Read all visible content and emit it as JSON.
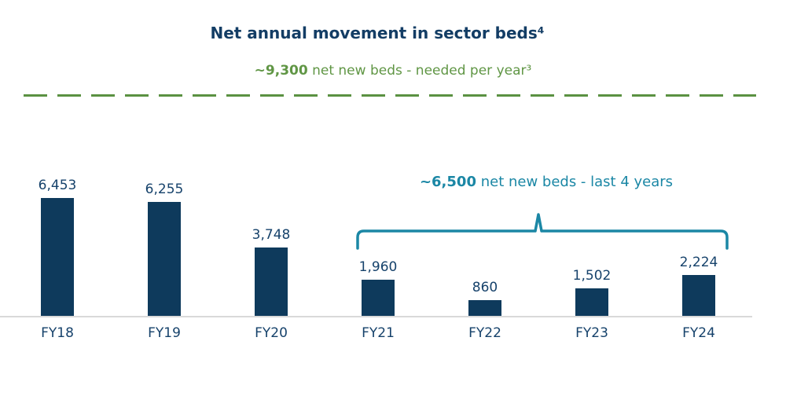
{
  "header": {
    "title": "Net annual movement in sector beds⁴",
    "subtitle_bold": "~9,300",
    "subtitle_rest": " net new beds - needed per year³"
  },
  "annotation": {
    "bracket_bold": "~6,500",
    "bracket_rest": " net new beds - last 4 years"
  },
  "colors": {
    "navy_title": "#133D65",
    "navy_bar": "#0E3A5C",
    "navy_label": "#16426B",
    "green": "#5B9142",
    "teal": "#1B87A5",
    "baseline_gray": "#D9D9D9"
  },
  "chart_data": {
    "type": "bar",
    "title": "Net annual movement in sector beds⁴",
    "categories": [
      "FY18",
      "FY19",
      "FY20",
      "FY21",
      "FY22",
      "FY23",
      "FY24"
    ],
    "values": [
      6453,
      6255,
      3748,
      1960,
      860,
      1502,
      2224
    ],
    "value_labels": [
      "6,453",
      "6,255",
      "3,748",
      "1,960",
      "860",
      "1,502",
      "2,224"
    ],
    "bar_color": "#0E3A5C",
    "xlabel": "",
    "ylabel": "",
    "ylim": [
      0,
      9300
    ],
    "grid": false,
    "legend": false,
    "annotations": [
      {
        "type": "dashed-reference-line",
        "text": "~9,300 net new beds - needed per year³",
        "value": 9300,
        "color": "#5B9142"
      },
      {
        "type": "bracket",
        "text": "~6,500 net new beds - last 4 years",
        "value": 6500,
        "span": [
          "FY21",
          "FY24"
        ],
        "color": "#1B87A5"
      }
    ]
  }
}
